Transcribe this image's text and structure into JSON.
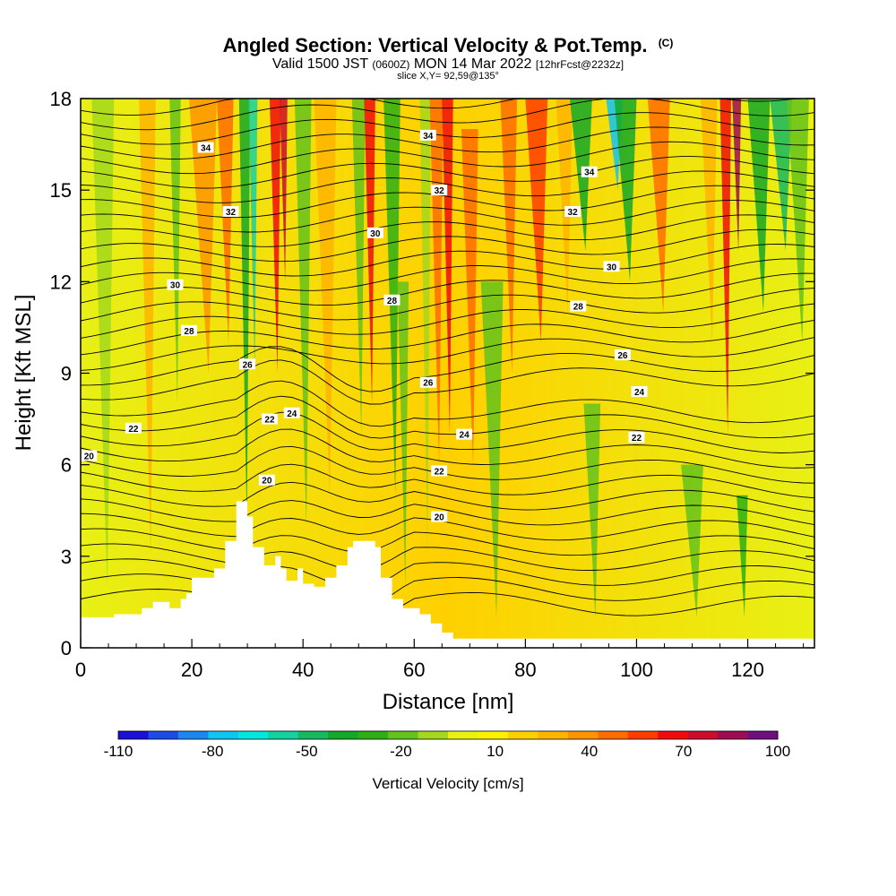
{
  "header": {
    "title_main": "Angled Section: Vertical Velocity & Pot.Temp.",
    "title_tag": "(C)",
    "valid_prefix": "Valid 1500 JST",
    "valid_utc": "(0600Z)",
    "valid_date": "MON 14 Mar 2022",
    "forecast": "[12hrFcst@2232z]",
    "slice": "slice X,Y= 92,59@135°"
  },
  "chart_data": {
    "type": "heatmap",
    "title": "Angled Section: Vertical Velocity & Pot.Temp.",
    "xlabel": "Distance [nm]",
    "ylabel": "Height [Kft MSL]",
    "xlim": [
      0,
      132
    ],
    "ylim": [
      0,
      18
    ],
    "x_ticks": [
      0,
      20,
      40,
      60,
      80,
      100,
      120
    ],
    "y_ticks": [
      0,
      3,
      6,
      9,
      12,
      15,
      18
    ],
    "colorbar": {
      "title": "Vertical Velocity [cm/s]",
      "tick_labels": [
        "-110",
        "-80",
        "-50",
        "-20",
        "10",
        "40",
        "70",
        "100"
      ],
      "tick_values": [
        -110,
        -80,
        -50,
        -20,
        10,
        40,
        70,
        100
      ],
      "levels": [
        -110,
        -100,
        -90,
        -80,
        -70,
        -60,
        -50,
        -40,
        -30,
        -20,
        -10,
        0,
        10,
        20,
        30,
        40,
        50,
        60,
        70,
        80,
        90,
        100
      ],
      "colors": [
        "#1a10d8",
        "#1c4ce8",
        "#1a88f0",
        "#10c4f4",
        "#00e6e0",
        "#14d2a0",
        "#18b860",
        "#14a828",
        "#2cb014",
        "#64c21c",
        "#a4d81c",
        "#e8f014",
        "#fff000",
        "#ffd000",
        "#ffb400",
        "#ff9400",
        "#ff6c00",
        "#ff3c00",
        "#f00c0c",
        "#cc0c2c",
        "#a00c54",
        "#701080"
      ]
    },
    "terrain": [
      [
        0,
        1
      ],
      [
        6,
        1
      ],
      [
        6,
        1.1
      ],
      [
        11,
        1.1
      ],
      [
        11,
        1.3
      ],
      [
        13,
        1.3
      ],
      [
        13,
        1.5
      ],
      [
        16,
        1.5
      ],
      [
        16,
        1.3
      ],
      [
        18,
        1.3
      ],
      [
        18,
        1.6
      ],
      [
        19,
        1.6
      ],
      [
        19,
        1.8
      ],
      [
        20,
        1.8
      ],
      [
        20,
        2.3
      ],
      [
        24,
        2.3
      ],
      [
        24,
        2.6
      ],
      [
        26,
        2.6
      ],
      [
        26,
        3.5
      ],
      [
        28,
        3.5
      ],
      [
        28,
        4.8
      ],
      [
        30,
        4.8
      ],
      [
        30,
        4.3
      ],
      [
        31,
        4.3
      ],
      [
        31,
        3.3
      ],
      [
        33,
        3.3
      ],
      [
        33,
        2.7
      ],
      [
        35,
        2.7
      ],
      [
        35,
        3.0
      ],
      [
        36,
        3.0
      ],
      [
        36,
        2.6
      ],
      [
        37,
        2.6
      ],
      [
        37,
        2.2
      ],
      [
        39,
        2.2
      ],
      [
        39,
        2.6
      ],
      [
        40,
        2.6
      ],
      [
        40,
        2.1
      ],
      [
        42,
        2.1
      ],
      [
        42,
        2.0
      ],
      [
        44,
        2.0
      ],
      [
        44,
        2.3
      ],
      [
        46,
        2.3
      ],
      [
        46,
        2.7
      ],
      [
        48,
        2.7
      ],
      [
        48,
        3.3
      ],
      [
        49,
        3.3
      ],
      [
        49,
        3.5
      ],
      [
        53,
        3.5
      ],
      [
        53,
        3.3
      ],
      [
        54,
        3.3
      ],
      [
        54,
        2.3
      ],
      [
        56,
        2.3
      ],
      [
        56,
        1.6
      ],
      [
        58,
        1.6
      ],
      [
        58,
        1.3
      ],
      [
        61,
        1.3
      ],
      [
        61,
        1.1
      ],
      [
        63,
        1.1
      ],
      [
        63,
        0.8
      ],
      [
        65,
        0.8
      ],
      [
        65,
        0.5
      ],
      [
        67,
        0.5
      ],
      [
        67,
        0.3
      ],
      [
        132,
        0.3
      ],
      [
        132,
        0
      ]
    ],
    "pot_temp_labels": [
      {
        "x": 1.5,
        "y": 6.3,
        "value": "20"
      },
      {
        "x": 33.5,
        "y": 5.5,
        "value": "20"
      },
      {
        "x": 64.5,
        "y": 4.3,
        "value": "20"
      },
      {
        "x": 9.5,
        "y": 7.2,
        "value": "22"
      },
      {
        "x": 34.0,
        "y": 7.5,
        "value": "22"
      },
      {
        "x": 64.5,
        "y": 5.8,
        "value": "22"
      },
      {
        "x": 100.0,
        "y": 6.9,
        "value": "22"
      },
      {
        "x": 38.0,
        "y": 7.7,
        "value": "24"
      },
      {
        "x": 69.0,
        "y": 7.0,
        "value": "24"
      },
      {
        "x": 100.5,
        "y": 8.4,
        "value": "24"
      },
      {
        "x": 30.0,
        "y": 9.3,
        "value": "26"
      },
      {
        "x": 62.5,
        "y": 8.7,
        "value": "26"
      },
      {
        "x": 97.5,
        "y": 9.6,
        "value": "26"
      },
      {
        "x": 19.5,
        "y": 10.4,
        "value": "28"
      },
      {
        "x": 56.0,
        "y": 11.4,
        "value": "28"
      },
      {
        "x": 89.5,
        "y": 11.2,
        "value": "28"
      },
      {
        "x": 17.0,
        "y": 11.9,
        "value": "30"
      },
      {
        "x": 53.0,
        "y": 13.6,
        "value": "30"
      },
      {
        "x": 95.5,
        "y": 12.5,
        "value": "30"
      },
      {
        "x": 27.0,
        "y": 14.3,
        "value": "32"
      },
      {
        "x": 64.5,
        "y": 15.0,
        "value": "32"
      },
      {
        "x": 88.5,
        "y": 14.3,
        "value": "32"
      },
      {
        "x": 22.5,
        "y": 16.4,
        "value": "34"
      },
      {
        "x": 62.5,
        "y": 16.8,
        "value": "34"
      },
      {
        "x": 91.5,
        "y": 15.6,
        "value": "34"
      }
    ]
  }
}
